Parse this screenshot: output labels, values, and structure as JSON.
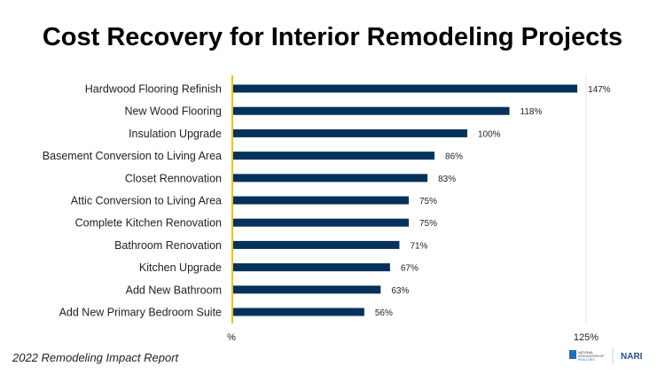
{
  "chart_data": {
    "type": "bar",
    "orientation": "horizontal",
    "title": "Cost Recovery for Interior Remodeling Projects",
    "categories": [
      "Hardwood Flooring Refinish",
      "New Wood Flooring",
      "Insulation Upgrade",
      "Basement Conversion to Living Area",
      "Closet Rennovation",
      "Attic  Conversion to Living Area",
      "Complete Kitchen Renovation",
      "Bathroom Renovation",
      "Kitchen Upgrade",
      "Add New Bathroom",
      "Add New Primary Bedroom Suite"
    ],
    "values": [
      147,
      118,
      100,
      86,
      83,
      75,
      75,
      71,
      67,
      63,
      56
    ],
    "data_labels": [
      "147%",
      "118%",
      "100%",
      "86%",
      "83%",
      "75%",
      "75%",
      "71%",
      "67%",
      "63%",
      "56%"
    ],
    "x_tick_labels": [
      "%",
      "125%"
    ],
    "grid": false,
    "bar_color": "#05325a",
    "axis_color": "#f2c200"
  },
  "footer": "2022 Remodeling Impact Report",
  "logos": {
    "nar": "NATIONAL ASSOCIATION OF REALTORS",
    "nari": "NARI"
  }
}
